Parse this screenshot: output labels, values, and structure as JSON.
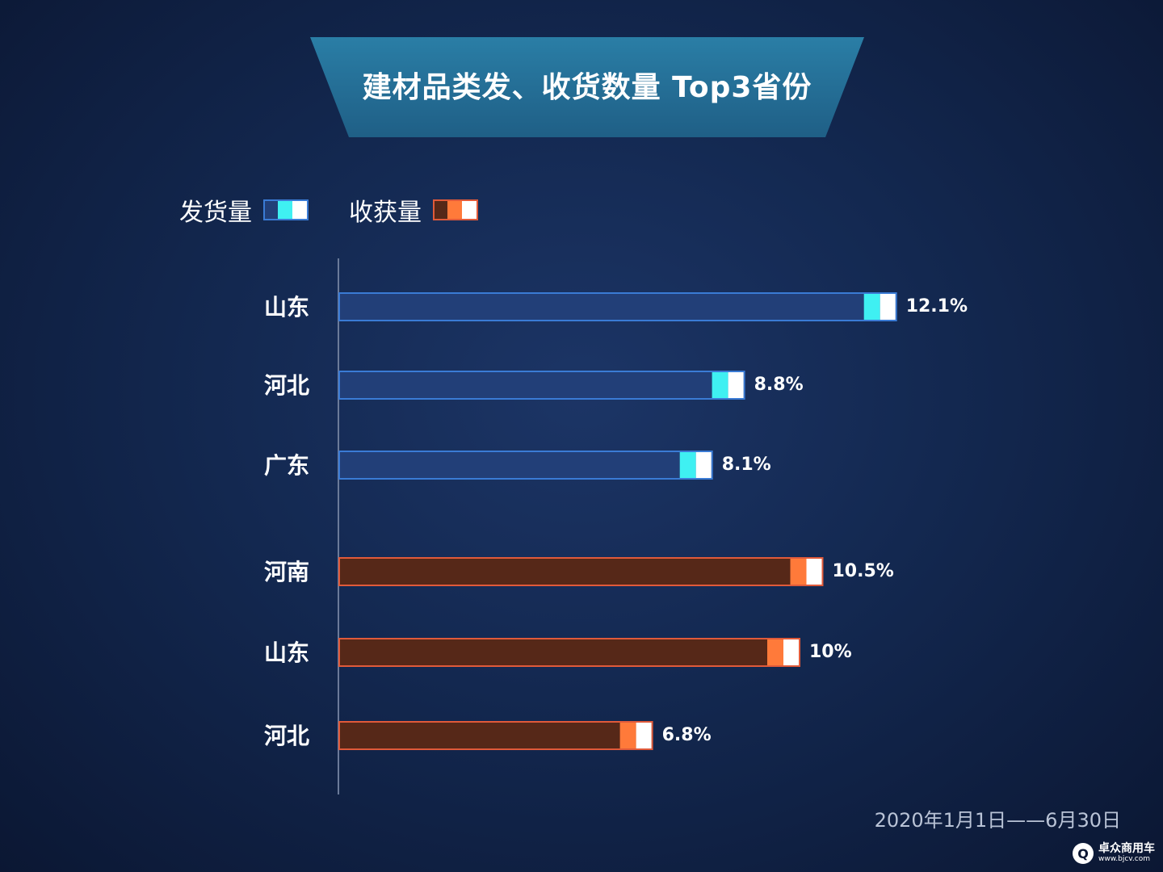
{
  "title": "建材品类发、收货数量 Top3省份",
  "legend": [
    {
      "label": "发货量",
      "fill": "#223f78",
      "stroke": "#3a7bd5",
      "accent": "#3ff0f2"
    },
    {
      "label": "收获量",
      "fill": "#562818",
      "stroke": "#e05a3a",
      "accent": "#ff7a3a"
    }
  ],
  "chart_data": {
    "type": "bar",
    "orientation": "horizontal",
    "groups": [
      {
        "name": "发货量",
        "categories": [
          "山东",
          "河北",
          "广东"
        ],
        "values": [
          12.1,
          8.8,
          8.1
        ],
        "labels": [
          "12.1%",
          "8.8%",
          "8.1%"
        ]
      },
      {
        "name": "收获量",
        "categories": [
          "河南",
          "山东",
          "河北"
        ],
        "values": [
          10.5,
          10,
          6.8
        ],
        "labels": [
          "10.5%",
          "10%",
          "6.8%"
        ]
      }
    ],
    "unit": "%"
  },
  "footer": {
    "date_range": "2020年1月1日——6月30日"
  },
  "watermark": {
    "logo": "Q",
    "name": "卓众商用车",
    "url": "www.bjcv.com"
  }
}
